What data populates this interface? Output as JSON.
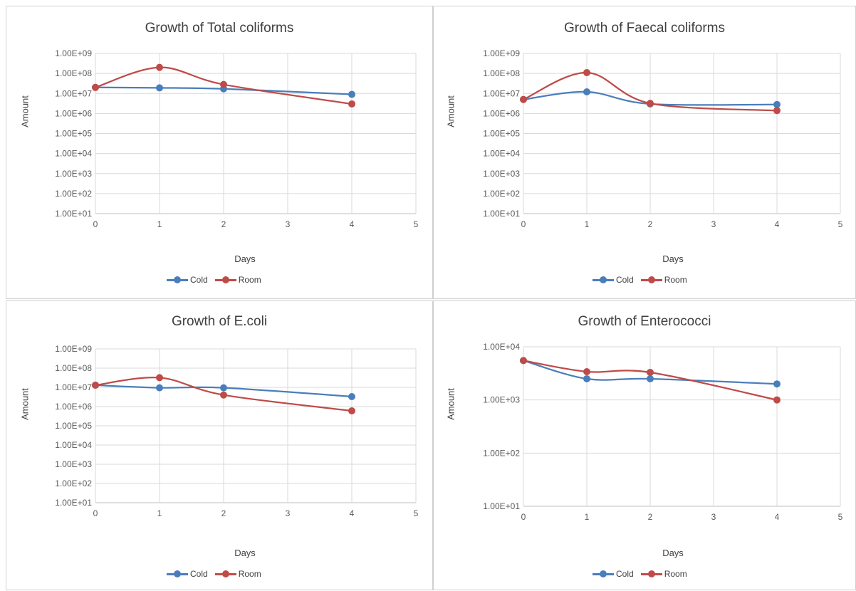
{
  "colors": {
    "cold": "#4a7ebb",
    "room": "#be4b48",
    "grid": "#d9d9d9",
    "axis": "#bfbfbf",
    "text": "#595959"
  },
  "chart_data": [
    {
      "type": "line",
      "title": "Growth of Total coliforms",
      "xlabel": "Days",
      "ylabel": "Amount",
      "yscale": "log",
      "xlim": [
        0,
        5
      ],
      "ylim": [
        10,
        1000000000
      ],
      "xticks": [
        "0",
        "1",
        "2",
        "3",
        "4",
        "5"
      ],
      "yticks": [
        "1.00E+01",
        "1.00E+02",
        "1.00E+03",
        "1.00E+04",
        "1.00E+05",
        "1.00E+06",
        "1.00E+07",
        "1.00E+08",
        "1.00E+09"
      ],
      "grid": true,
      "legend": "bottom",
      "series": [
        {
          "name": "Cold",
          "x": [
            0,
            1,
            2,
            4
          ],
          "y": [
            20000000,
            19000000,
            17000000,
            9000000
          ]
        },
        {
          "name": "Room",
          "x": [
            0,
            1,
            2,
            4
          ],
          "y": [
            20000000,
            200000000,
            28000000,
            3000000
          ]
        }
      ]
    },
    {
      "type": "line",
      "title": "Growth of Faecal coliforms",
      "xlabel": "Days",
      "ylabel": "Amount",
      "yscale": "log",
      "xlim": [
        0,
        5
      ],
      "ylim": [
        10,
        1000000000
      ],
      "xticks": [
        "0",
        "1",
        "2",
        "3",
        "4",
        "5"
      ],
      "yticks": [
        "1.00E+01",
        "1.00E+02",
        "1.00E+03",
        "1.00E+04",
        "1.00E+05",
        "1.00E+06",
        "1.00E+07",
        "1.00E+08",
        "1.00E+09"
      ],
      "grid": true,
      "legend": "bottom",
      "series": [
        {
          "name": "Cold",
          "x": [
            0,
            1,
            2,
            4
          ],
          "y": [
            5000000,
            12000000,
            3000000,
            2800000
          ]
        },
        {
          "name": "Room",
          "x": [
            0,
            1,
            2,
            4
          ],
          "y": [
            5000000,
            110000000,
            3200000,
            1400000
          ]
        }
      ]
    },
    {
      "type": "line",
      "title": "Growth of E.coli",
      "xlabel": "Days",
      "ylabel": "Amount",
      "yscale": "log",
      "xlim": [
        0,
        5
      ],
      "ylim": [
        10,
        1000000000
      ],
      "xticks": [
        "0",
        "1",
        "2",
        "3",
        "4",
        "5"
      ],
      "yticks": [
        "1.00E+01",
        "1.00E+02",
        "1.00E+03",
        "1.00E+04",
        "1.00E+05",
        "1.00E+06",
        "1.00E+07",
        "1.00E+08",
        "1.00E+09"
      ],
      "grid": true,
      "legend": "bottom",
      "series": [
        {
          "name": "Cold",
          "x": [
            0,
            1,
            2,
            4
          ],
          "y": [
            13000000,
            9500000,
            9500000,
            3300000
          ]
        },
        {
          "name": "Room",
          "x": [
            0,
            1,
            2,
            4
          ],
          "y": [
            13000000,
            32000000,
            4000000,
            600000
          ]
        }
      ]
    },
    {
      "type": "line",
      "title": "Growth of Enterococci",
      "xlabel": "Days",
      "ylabel": "Amount",
      "yscale": "log",
      "xlim": [
        0,
        5
      ],
      "ylim": [
        10,
        10000
      ],
      "xticks": [
        "0",
        "1",
        "2",
        "3",
        "4",
        "5"
      ],
      "yticks": [
        "1.00E+01",
        "1.00E+02",
        "1.00E+03",
        "1.00E+04"
      ],
      "grid": true,
      "legend": "bottom",
      "series": [
        {
          "name": "Cold",
          "x": [
            0,
            1,
            2,
            4
          ],
          "y": [
            5500,
            2500,
            2500,
            2000
          ]
        },
        {
          "name": "Room",
          "x": [
            0,
            1,
            2,
            4
          ],
          "y": [
            5500,
            3400,
            3300,
            1000
          ]
        }
      ]
    }
  ]
}
